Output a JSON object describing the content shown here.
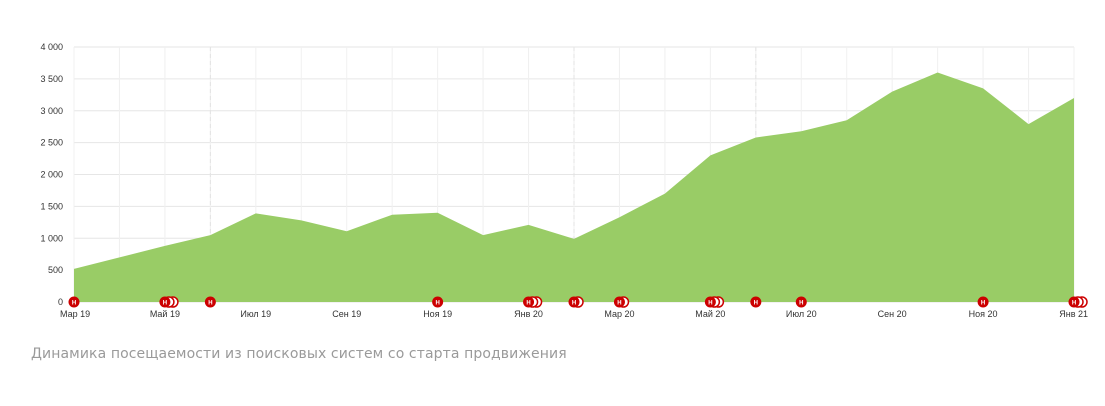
{
  "caption": "Динамика посещаемости из поисковых систем со старта продвижения",
  "colors": {
    "area": "#99cc66",
    "grid": "#e6e6e6",
    "vline": "#e3e3e3",
    "marker": "#cc0000",
    "tick_text": "#333333",
    "caption": "#9a9a9a"
  },
  "marker_label": "Н",
  "chart_data": {
    "type": "area",
    "title": "",
    "xlabel": "",
    "ylabel": "",
    "ylim": [
      0,
      4000
    ],
    "yticks": [
      0,
      500,
      1000,
      1500,
      2000,
      2500,
      3000,
      3500,
      4000
    ],
    "ytick_labels": [
      "0",
      "500",
      "1 000",
      "1 500",
      "2 000",
      "2 500",
      "3 000",
      "3 500",
      "4 000"
    ],
    "grid": true,
    "legend": "none",
    "x": [
      "Мар 19",
      "Апр 19",
      "Май 19",
      "Июн 19",
      "Июл 19",
      "Авг 19",
      "Сен 19",
      "Окт 19",
      "Ноя 19",
      "Дек 19",
      "Янв 20",
      "Фев 20",
      "Мар 20",
      "Апр 20",
      "Май 20",
      "Июн 20",
      "Июл 20",
      "Авг 20",
      "Сен 20",
      "Окт 20",
      "Ноя 20",
      "Дек 20",
      "Янв 21"
    ],
    "xtick_labels": [
      "Мар 19",
      "",
      "Май 19",
      "",
      "Июл 19",
      "",
      "Сен 19",
      "",
      "Ноя 19",
      "",
      "Янв 20",
      "",
      "Мар 20",
      "",
      "Май 20",
      "",
      "Июл 20",
      "",
      "Сен 20",
      "",
      "Ноя 20",
      "",
      "Янв 21"
    ],
    "series": [
      {
        "values": [
          520,
          700,
          880,
          1050,
          1390,
          1280,
          1110,
          1370,
          1400,
          1050,
          1210,
          990,
          1330,
          1700,
          2300,
          2580,
          2680,
          2850,
          3300,
          3600,
          3350,
          2790,
          3200
        ]
      }
    ],
    "dashed_vlines": [
      3,
      11,
      15
    ],
    "markers": [
      {
        "index": 0,
        "count": 1
      },
      {
        "index": 2,
        "count": 3
      },
      {
        "index": 3,
        "count": 1
      },
      {
        "index": 8,
        "count": 1
      },
      {
        "index": 10,
        "count": 3
      },
      {
        "index": 11,
        "count": 2
      },
      {
        "index": 12,
        "count": 2
      },
      {
        "index": 14,
        "count": 3
      },
      {
        "index": 15,
        "count": 1
      },
      {
        "index": 16,
        "count": 1
      },
      {
        "index": 20,
        "count": 1
      },
      {
        "index": 22,
        "count": 3
      }
    ]
  }
}
